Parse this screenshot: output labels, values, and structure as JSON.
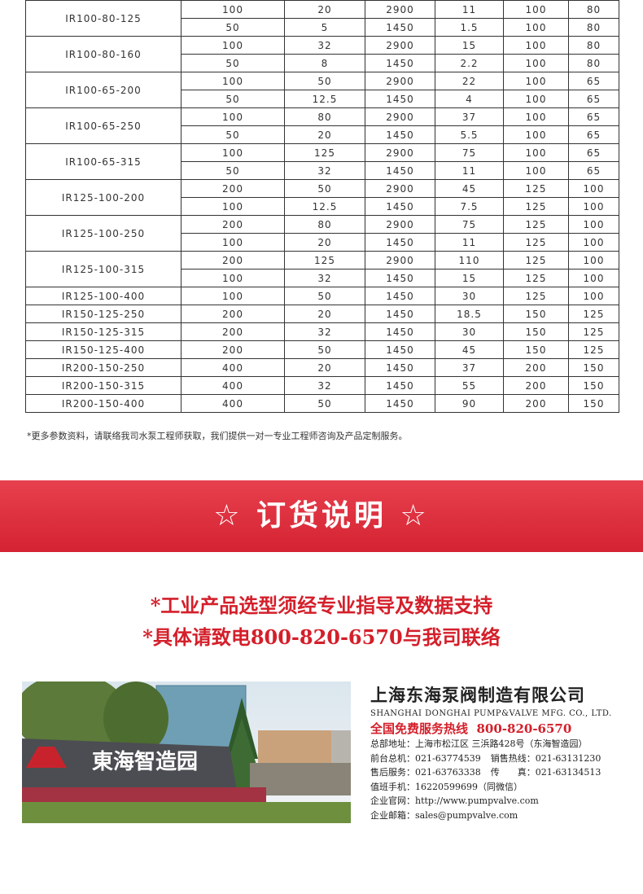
{
  "table": {
    "groups": [
      {
        "model": "IR100-80-125",
        "rows": [
          [
            "100",
            "20",
            "2900",
            "11",
            "100",
            "80"
          ],
          [
            "50",
            "5",
            "1450",
            "1.5",
            "100",
            "80"
          ]
        ]
      },
      {
        "model": "IR100-80-160",
        "rows": [
          [
            "100",
            "32",
            "2900",
            "15",
            "100",
            "80"
          ],
          [
            "50",
            "8",
            "1450",
            "2.2",
            "100",
            "80"
          ]
        ]
      },
      {
        "model": "IR100-65-200",
        "rows": [
          [
            "100",
            "50",
            "2900",
            "22",
            "100",
            "65"
          ],
          [
            "50",
            "12.5",
            "1450",
            "4",
            "100",
            "65"
          ]
        ]
      },
      {
        "model": "IR100-65-250",
        "rows": [
          [
            "100",
            "80",
            "2900",
            "37",
            "100",
            "65"
          ],
          [
            "50",
            "20",
            "1450",
            "5.5",
            "100",
            "65"
          ]
        ]
      },
      {
        "model": "IR100-65-315",
        "rows": [
          [
            "100",
            "125",
            "2900",
            "75",
            "100",
            "65"
          ],
          [
            "50",
            "32",
            "1450",
            "11",
            "100",
            "65"
          ]
        ]
      },
      {
        "model": "IR125-100-200",
        "rows": [
          [
            "200",
            "50",
            "2900",
            "45",
            "125",
            "100"
          ],
          [
            "100",
            "12.5",
            "1450",
            "7.5",
            "125",
            "100"
          ]
        ]
      },
      {
        "model": "IR125-100-250",
        "rows": [
          [
            "200",
            "80",
            "2900",
            "75",
            "125",
            "100"
          ],
          [
            "100",
            "20",
            "1450",
            "11",
            "125",
            "100"
          ]
        ]
      },
      {
        "model": "IR125-100-315",
        "rows": [
          [
            "200",
            "125",
            "2900",
            "110",
            "125",
            "100"
          ],
          [
            "100",
            "32",
            "1450",
            "15",
            "125",
            "100"
          ]
        ]
      },
      {
        "model": "IR125-100-400",
        "rows": [
          [
            "100",
            "50",
            "1450",
            "30",
            "125",
            "100"
          ]
        ]
      },
      {
        "model": "IR150-125-250",
        "rows": [
          [
            "200",
            "20",
            "1450",
            "18.5",
            "150",
            "125"
          ]
        ]
      },
      {
        "model": "IR150-125-315",
        "rows": [
          [
            "200",
            "32",
            "1450",
            "30",
            "150",
            "125"
          ]
        ]
      },
      {
        "model": "IR150-125-400",
        "rows": [
          [
            "200",
            "50",
            "1450",
            "45",
            "150",
            "125"
          ]
        ]
      },
      {
        "model": "IR200-150-250",
        "rows": [
          [
            "400",
            "20",
            "1450",
            "37",
            "200",
            "150"
          ]
        ]
      },
      {
        "model": "IR200-150-315",
        "rows": [
          [
            "400",
            "32",
            "1450",
            "55",
            "200",
            "150"
          ]
        ]
      },
      {
        "model": "IR200-150-400",
        "rows": [
          [
            "400",
            "50",
            "1450",
            "90",
            "200",
            "150"
          ]
        ]
      }
    ]
  },
  "footnote": "*更多参数资料，请联络我司水泵工程师获取，我们提供一对一专业工程师咨询及产品定制服务。",
  "banner": {
    "title": "☆ 订货说明 ☆"
  },
  "notes": [
    "*工业产品选型须经专业指导及数据支持",
    "*具体请致电800-820-6570与我司联络"
  ],
  "photo": {
    "sign": "東海智造园"
  },
  "company": {
    "name": "上海东海泵阀制造有限公司",
    "english": "SHANGHAI DONGHAI PUMP&VALVE MFG. CO., LTD.",
    "hotline": {
      "label": "全国免费服务热线",
      "number": "800-820-6570"
    },
    "lines": [
      [
        "总部地址：",
        "上海市松江区 三浜路428号（东海智造园）"
      ],
      [
        "前台总机：",
        "021-63774539",
        "销售热线：",
        "021-63131230"
      ],
      [
        "售后服务：",
        "021-63763338",
        "传　　真：",
        "021-63134513"
      ],
      [
        "值班手机：",
        "16220599699（同微信）"
      ],
      [
        "企业官网：",
        "http://www.pumpvalve.com"
      ],
      [
        "企业邮箱：",
        "sales@pumpvalve.com"
      ]
    ]
  }
}
